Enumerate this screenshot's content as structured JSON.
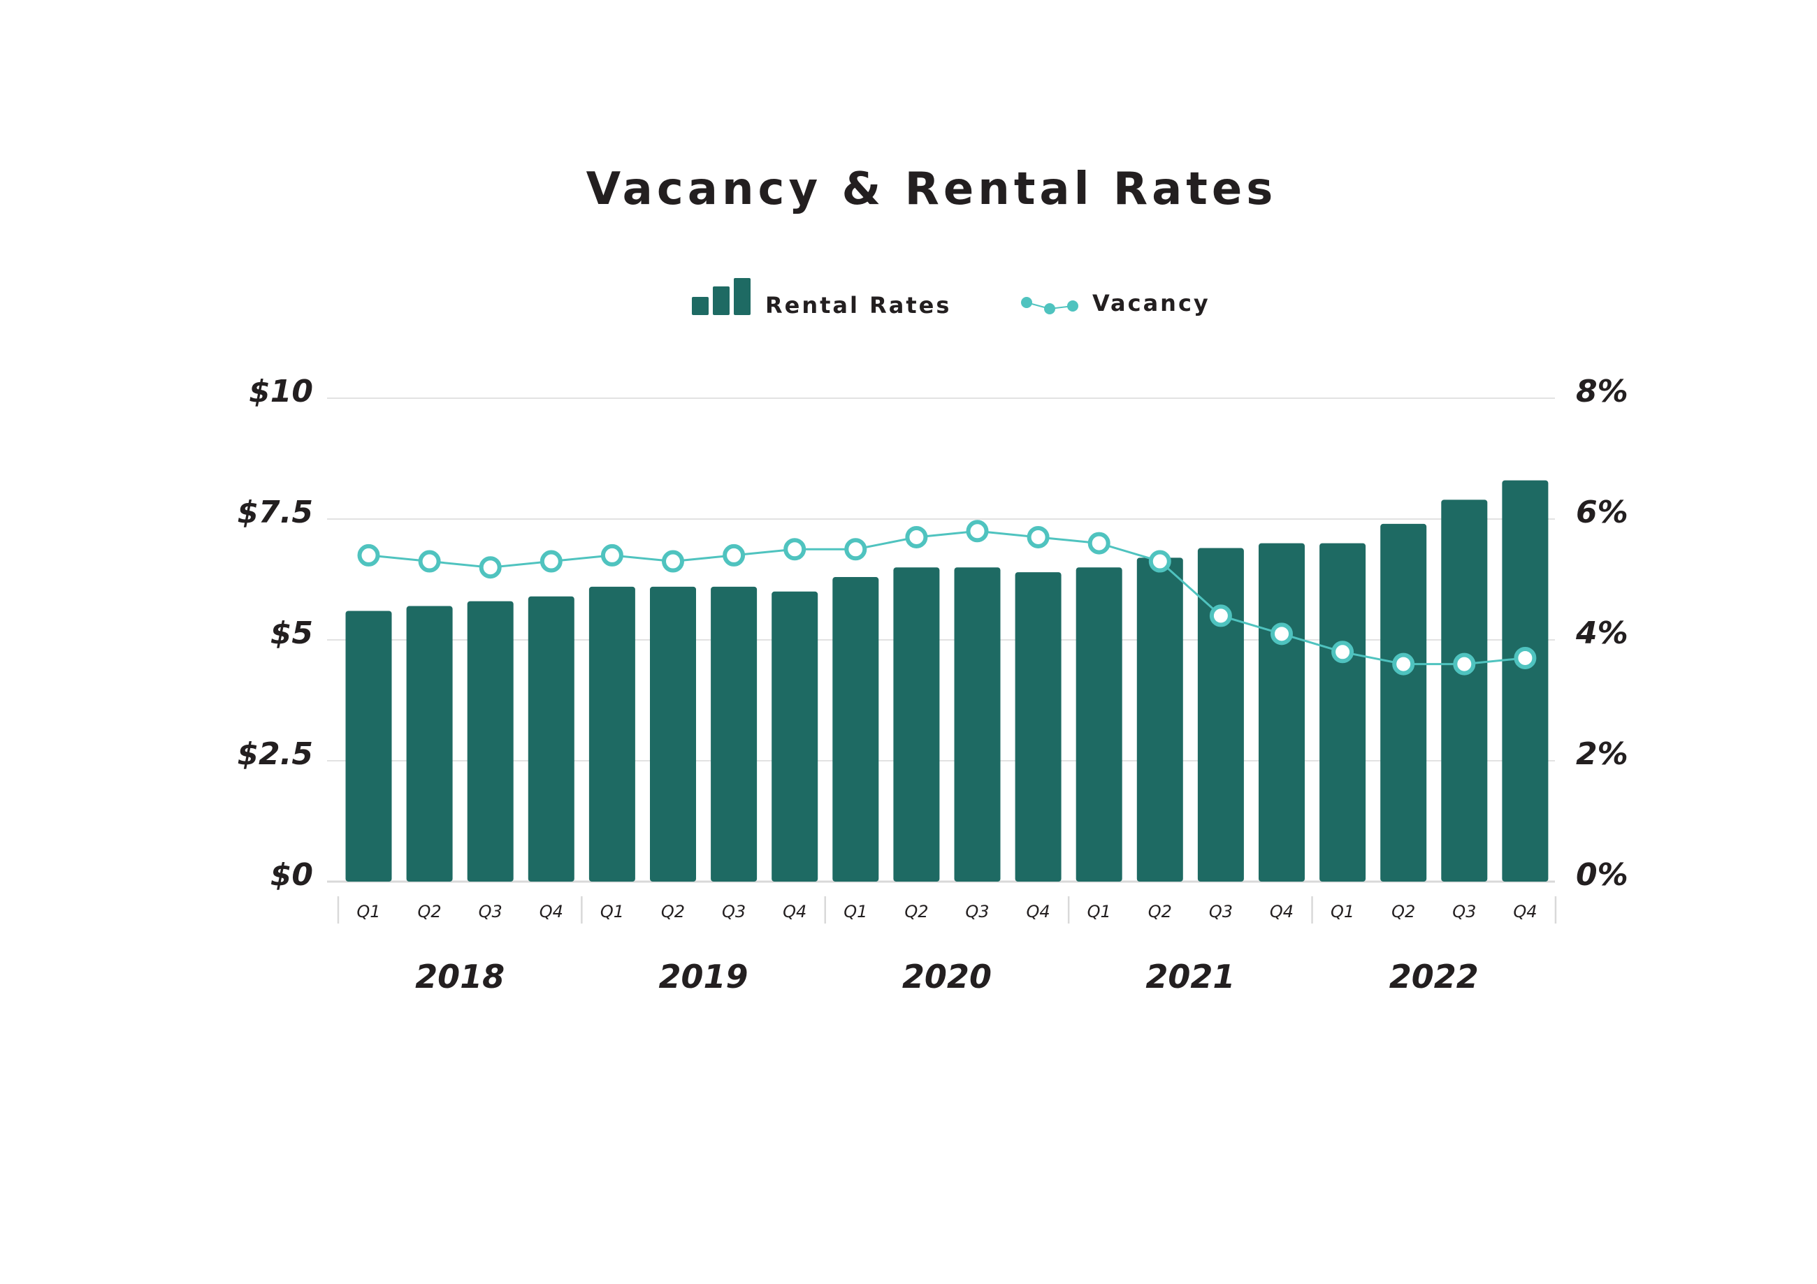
{
  "colors": {
    "bar": "#1e6a63",
    "line": "#4fc3bf",
    "marker_fill": "#ffffff",
    "grid": "#d9d9d9",
    "text": "#231f20"
  },
  "chart_data": {
    "type": "bar",
    "title": "Vacancy & Rental Rates",
    "legend": {
      "placement": "top-center",
      "items": [
        "Rental Rates",
        "Vacancy"
      ]
    },
    "left_axis": {
      "range": [
        0,
        10
      ],
      "ticks": [
        0,
        2.5,
        5,
        7.5,
        10
      ],
      "tick_labels": [
        "$0",
        "$2.5",
        "$5",
        "$7.5",
        "$10"
      ]
    },
    "right_axis": {
      "range": [
        0,
        8
      ],
      "ticks": [
        0,
        2,
        4,
        6,
        8
      ],
      "tick_labels": [
        "0%",
        "2%",
        "4%",
        "6%",
        "8%"
      ]
    },
    "grid": true,
    "categories": [
      "Q1",
      "Q2",
      "Q3",
      "Q4",
      "Q1",
      "Q2",
      "Q3",
      "Q4",
      "Q1",
      "Q2",
      "Q3",
      "Q4",
      "Q1",
      "Q2",
      "Q3",
      "Q4",
      "Q1",
      "Q2",
      "Q3",
      "Q4"
    ],
    "groups": [
      {
        "label": "2018",
        "count": 4
      },
      {
        "label": "2019",
        "count": 4
      },
      {
        "label": "2020",
        "count": 4
      },
      {
        "label": "2021",
        "count": 4
      },
      {
        "label": "2022",
        "count": 4
      }
    ],
    "series": [
      {
        "name": "Rental Rates",
        "type": "bar",
        "axis": "left",
        "values": [
          5.6,
          5.7,
          5.8,
          5.9,
          6.1,
          6.1,
          6.1,
          6.0,
          6.3,
          6.5,
          6.5,
          6.4,
          6.5,
          6.7,
          6.9,
          7.0,
          7.0,
          7.4,
          7.9,
          8.3
        ]
      },
      {
        "name": "Vacancy",
        "type": "line",
        "axis": "right",
        "values": [
          5.4,
          5.3,
          5.2,
          5.3,
          5.4,
          5.3,
          5.4,
          5.5,
          5.5,
          5.7,
          5.8,
          5.7,
          5.6,
          5.3,
          4.4,
          4.1,
          3.8,
          3.6,
          3.6,
          3.7
        ]
      }
    ]
  }
}
